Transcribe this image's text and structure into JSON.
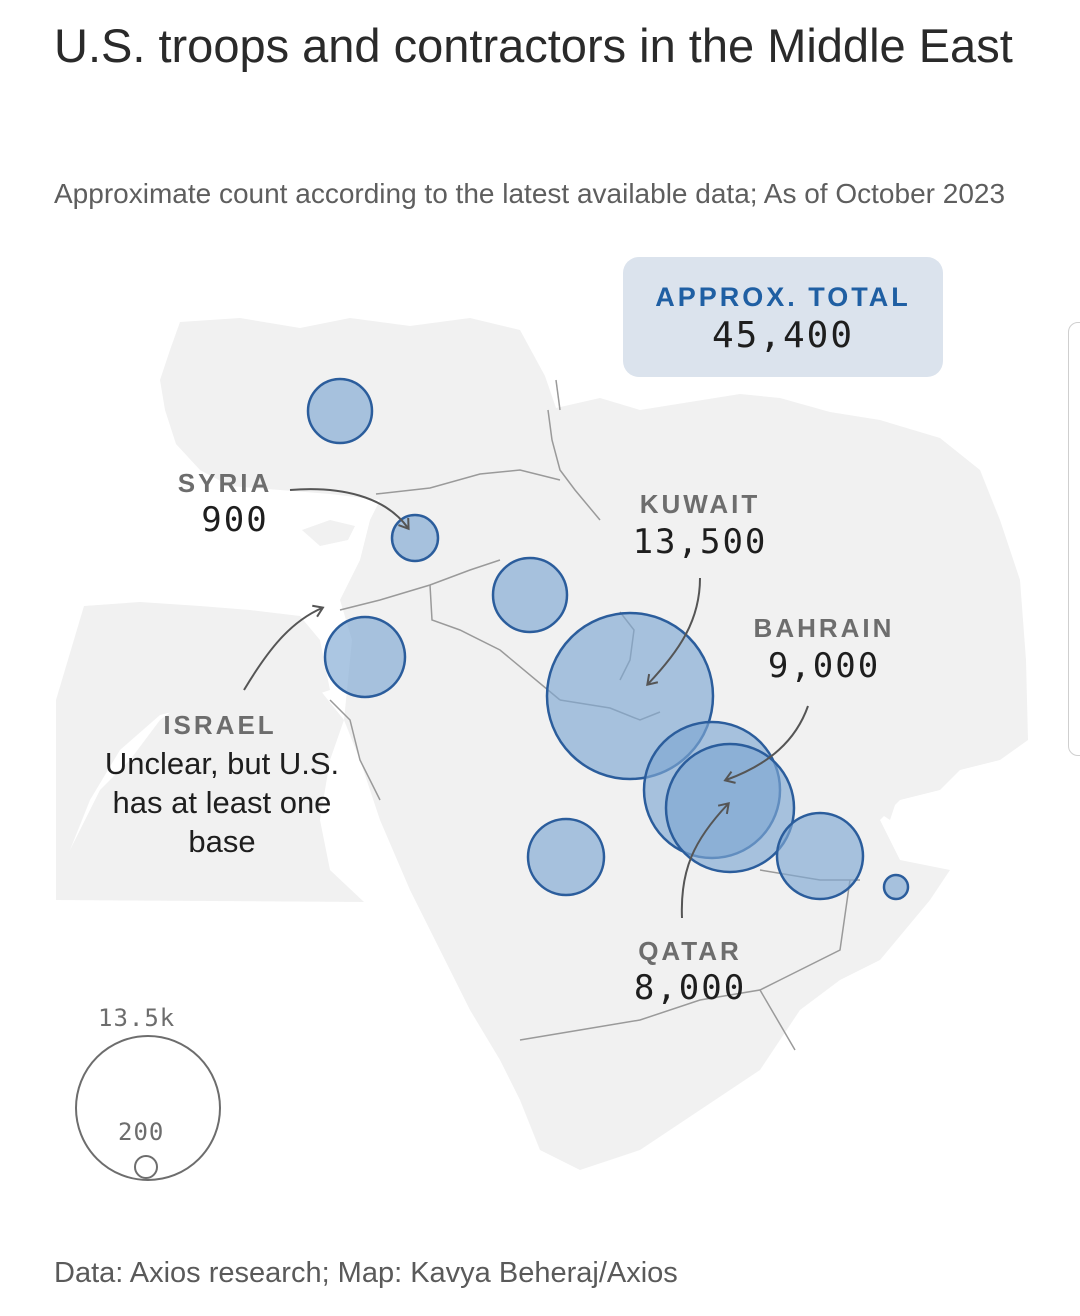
{
  "title": "U.S. troops and contractors in the Middle East",
  "subtitle": "Approximate count according to the latest available data; As of October 2023",
  "total": {
    "label": "APPROX. TOTAL",
    "value": "45,400"
  },
  "callouts": {
    "syria": {
      "label": "SYRIA",
      "value": "900"
    },
    "kuwait": {
      "label": "KUWAIT",
      "value": "13,500"
    },
    "bahrain": {
      "label": "BAHRAIN",
      "value": "9,000"
    },
    "qatar": {
      "label": "QATAR",
      "value": "8,000"
    },
    "israel": {
      "label": "ISRAEL",
      "note": "Unclear, but U.S. has at least one base"
    }
  },
  "legend": {
    "max_label": "13.5k",
    "min_label": "200",
    "max_value": 13500,
    "min_value": 200
  },
  "colors": {
    "bubble_fill": "#7ea7d3",
    "bubble_stroke": "#2b5d9c",
    "land": "#f1f1f1",
    "border": "#9a9a9a",
    "total_box": "#dbe3ed",
    "total_label": "#1f5fa3"
  },
  "source": "Data: Axios research; Map: Kavya Beheraj/Axios"
}
